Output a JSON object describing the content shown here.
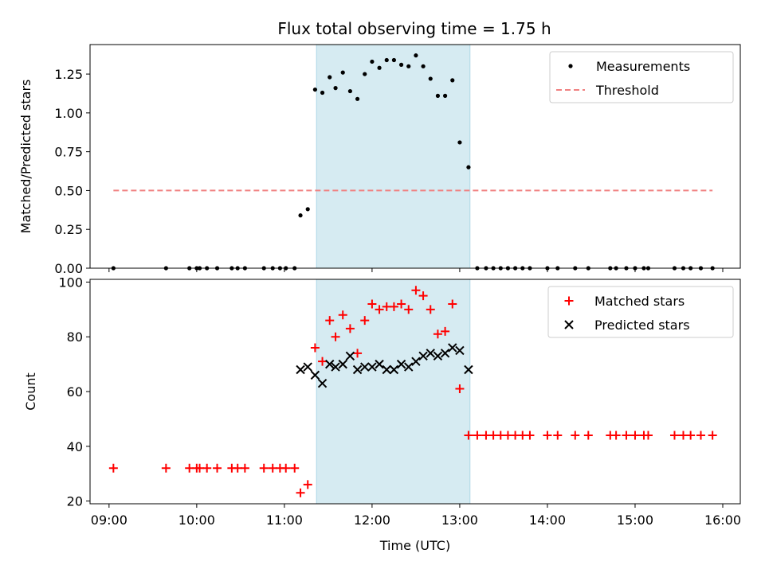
{
  "title": "Flux total observing time = 1.75 h",
  "colors": {
    "shade": "#add8e6",
    "threshold": "#f08080",
    "matched": "#ff0000",
    "predicted": "#000000",
    "measurement": "#000000"
  },
  "chart_data": [
    {
      "type": "scatter",
      "ylabel": "Matched/Predicted stars",
      "x_is_time": true,
      "xlim": [
        "08:47",
        "16:12"
      ],
      "ylim": [
        0,
        1.44
      ],
      "yticks": [
        0,
        0.25,
        0.5,
        0.75,
        1.0,
        1.25
      ],
      "ytick_labels": [
        "0.00",
        "0.25",
        "0.50",
        "0.75",
        "1.00",
        "1.25"
      ],
      "shaded_span": [
        "11:22",
        "13:07"
      ],
      "legend": {
        "placement": "top-right",
        "entries": [
          "Measurements",
          "Threshold"
        ]
      },
      "threshold": {
        "name": "Threshold",
        "y": 0.5,
        "x_range": [
          "09:03",
          "15:53"
        ],
        "style": "dashed"
      },
      "series": [
        {
          "name": "Measurements",
          "marker": "dot",
          "points": [
            [
              "09:03",
              0
            ],
            [
              "09:39",
              0
            ],
            [
              "09:55",
              0
            ],
            [
              "10:00",
              0
            ],
            [
              "10:02",
              0
            ],
            [
              "10:07",
              0
            ],
            [
              "10:14",
              0
            ],
            [
              "10:24",
              0
            ],
            [
              "10:28",
              0
            ],
            [
              "10:33",
              0
            ],
            [
              "10:46",
              0
            ],
            [
              "10:52",
              0
            ],
            [
              "10:57",
              0
            ],
            [
              "11:01",
              0
            ],
            [
              "11:07",
              0
            ],
            [
              "11:11",
              0.34
            ],
            [
              "11:16",
              0.38
            ],
            [
              "11:21",
              1.15
            ],
            [
              "11:26",
              1.13
            ],
            [
              "11:31",
              1.23
            ],
            [
              "11:35",
              1.16
            ],
            [
              "11:40",
              1.26
            ],
            [
              "11:45",
              1.14
            ],
            [
              "11:50",
              1.09
            ],
            [
              "11:55",
              1.25
            ],
            [
              "12:00",
              1.33
            ],
            [
              "12:05",
              1.29
            ],
            [
              "12:10",
              1.34
            ],
            [
              "12:15",
              1.34
            ],
            [
              "12:20",
              1.31
            ],
            [
              "12:25",
              1.3
            ],
            [
              "12:30",
              1.37
            ],
            [
              "12:35",
              1.3
            ],
            [
              "12:40",
              1.22
            ],
            [
              "12:45",
              1.11
            ],
            [
              "12:50",
              1.11
            ],
            [
              "12:55",
              1.21
            ],
            [
              "13:00",
              0.81
            ],
            [
              "13:06",
              0.65
            ],
            [
              "13:12",
              0
            ],
            [
              "13:18",
              0
            ],
            [
              "13:23",
              0
            ],
            [
              "13:28",
              0
            ],
            [
              "13:33",
              0
            ],
            [
              "13:38",
              0
            ],
            [
              "13:43",
              0
            ],
            [
              "13:48",
              0
            ],
            [
              "14:00",
              0
            ],
            [
              "14:07",
              0
            ],
            [
              "14:19",
              0
            ],
            [
              "14:28",
              0
            ],
            [
              "14:43",
              0
            ],
            [
              "14:47",
              0
            ],
            [
              "14:54",
              0
            ],
            [
              "15:00",
              0
            ],
            [
              "15:06",
              0
            ],
            [
              "15:09",
              0
            ],
            [
              "15:27",
              0
            ],
            [
              "15:33",
              0
            ],
            [
              "15:38",
              0
            ],
            [
              "15:45",
              0
            ],
            [
              "15:53",
              0
            ]
          ]
        }
      ]
    },
    {
      "type": "scatter",
      "xlabel": "Time (UTC)",
      "ylabel": "Count",
      "x_is_time": true,
      "xlim": [
        "08:47",
        "16:12"
      ],
      "ylim": [
        19,
        101
      ],
      "yticks": [
        20,
        40,
        60,
        80,
        100
      ],
      "xticks": [
        "09:00",
        "10:00",
        "11:00",
        "12:00",
        "13:00",
        "14:00",
        "15:00",
        "16:00"
      ],
      "shaded_span": [
        "11:22",
        "13:07"
      ],
      "legend": {
        "placement": "top-right",
        "entries": [
          "Matched stars",
          "Predicted stars"
        ]
      },
      "series": [
        {
          "name": "Matched stars",
          "marker": "plus",
          "points": [
            [
              "09:03",
              32
            ],
            [
              "09:39",
              32
            ],
            [
              "09:55",
              32
            ],
            [
              "10:00",
              32
            ],
            [
              "10:02",
              32
            ],
            [
              "10:07",
              32
            ],
            [
              "10:14",
              32
            ],
            [
              "10:24",
              32
            ],
            [
              "10:28",
              32
            ],
            [
              "10:33",
              32
            ],
            [
              "10:46",
              32
            ],
            [
              "10:52",
              32
            ],
            [
              "10:57",
              32
            ],
            [
              "11:01",
              32
            ],
            [
              "11:07",
              32
            ],
            [
              "11:11",
              23
            ],
            [
              "11:16",
              26
            ],
            [
              "11:21",
              76
            ],
            [
              "11:26",
              71
            ],
            [
              "11:31",
              86
            ],
            [
              "11:35",
              80
            ],
            [
              "11:40",
              88
            ],
            [
              "11:45",
              83
            ],
            [
              "11:50",
              74
            ],
            [
              "11:55",
              86
            ],
            [
              "12:00",
              92
            ],
            [
              "12:05",
              90
            ],
            [
              "12:10",
              91
            ],
            [
              "12:15",
              91
            ],
            [
              "12:20",
              92
            ],
            [
              "12:25",
              90
            ],
            [
              "12:30",
              97
            ],
            [
              "12:35",
              95
            ],
            [
              "12:40",
              90
            ],
            [
              "12:45",
              81
            ],
            [
              "12:50",
              82
            ],
            [
              "12:55",
              92
            ],
            [
              "13:00",
              61
            ],
            [
              "13:06",
              44
            ],
            [
              "13:12",
              44
            ],
            [
              "13:18",
              44
            ],
            [
              "13:23",
              44
            ],
            [
              "13:28",
              44
            ],
            [
              "13:33",
              44
            ],
            [
              "13:38",
              44
            ],
            [
              "13:43",
              44
            ],
            [
              "13:48",
              44
            ],
            [
              "14:00",
              44
            ],
            [
              "14:07",
              44
            ],
            [
              "14:19",
              44
            ],
            [
              "14:28",
              44
            ],
            [
              "14:43",
              44
            ],
            [
              "14:47",
              44
            ],
            [
              "14:54",
              44
            ],
            [
              "15:00",
              44
            ],
            [
              "15:06",
              44
            ],
            [
              "15:09",
              44
            ],
            [
              "15:27",
              44
            ],
            [
              "15:33",
              44
            ],
            [
              "15:38",
              44
            ],
            [
              "15:45",
              44
            ],
            [
              "15:53",
              44
            ]
          ]
        },
        {
          "name": "Predicted stars",
          "marker": "x",
          "points": [
            [
              "11:11",
              68
            ],
            [
              "11:16",
              69
            ],
            [
              "11:21",
              66
            ],
            [
              "11:26",
              63
            ],
            [
              "11:31",
              70
            ],
            [
              "11:35",
              69
            ],
            [
              "11:40",
              70
            ],
            [
              "11:45",
              73
            ],
            [
              "11:50",
              68
            ],
            [
              "11:55",
              69
            ],
            [
              "12:00",
              69
            ],
            [
              "12:05",
              70
            ],
            [
              "12:10",
              68
            ],
            [
              "12:15",
              68
            ],
            [
              "12:20",
              70
            ],
            [
              "12:25",
              69
            ],
            [
              "12:30",
              71
            ],
            [
              "12:35",
              73
            ],
            [
              "12:40",
              74
            ],
            [
              "12:45",
              73
            ],
            [
              "12:50",
              74
            ],
            [
              "12:55",
              76
            ],
            [
              "13:00",
              75
            ],
            [
              "13:06",
              68
            ]
          ]
        }
      ]
    }
  ]
}
